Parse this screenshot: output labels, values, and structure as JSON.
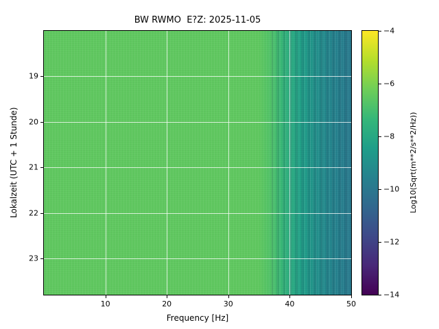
{
  "figure": {
    "title": "BW RWMO  E?Z: 2025-11-05",
    "background": "#ffffff"
  },
  "axes": {
    "x": {
      "label": "Frequency [Hz]",
      "ticks": [
        "10",
        "20",
        "30",
        "40",
        "50"
      ]
    },
    "y": {
      "label": "Lokalzeit (UTC + 1 Stunde)",
      "ticks": [
        "19",
        "20",
        "21",
        "22",
        "23"
      ]
    }
  },
  "colorbar": {
    "label": "Log10(Sqrt(m**2/s**2/Hz))",
    "ticks": [
      "−4",
      "−6",
      "−8",
      "−10",
      "−12",
      "−14"
    ]
  },
  "chart_data": {
    "type": "heatmap",
    "title": "BW RWMO  E?Z: 2025-11-05",
    "xlabel": "Frequency [Hz]",
    "ylabel": "Lokalzeit (UTC + 1 Stunde)",
    "colorbar_label": "Log10(Sqrt(m**2/s**2/Hz))",
    "colormap": "viridis",
    "x_range_hz": [
      0,
      50
    ],
    "x_ticks": [
      10,
      20,
      30,
      40,
      50
    ],
    "y_axis_range_hours": [
      18,
      23.8
    ],
    "y_ticks": [
      19,
      20,
      21,
      22,
      23
    ],
    "colorbar_range": [
      -14,
      -4
    ],
    "colorbar_ticks": [
      -4,
      -6,
      -8,
      -10,
      -12,
      -14
    ],
    "grid": true,
    "time_uniform": true,
    "value_profile_by_frequency": [
      {
        "freq_hz": 0,
        "log10_value": -6.5
      },
      {
        "freq_hz": 10,
        "log10_value": -6.5
      },
      {
        "freq_hz": 20,
        "log10_value": -6.5
      },
      {
        "freq_hz": 30,
        "log10_value": -6.5
      },
      {
        "freq_hz": 35,
        "log10_value": -6.5
      },
      {
        "freq_hz": 37,
        "log10_value": -6.8
      },
      {
        "freq_hz": 39,
        "log10_value": -7.4
      },
      {
        "freq_hz": 40,
        "log10_value": -7.8
      },
      {
        "freq_hz": 42,
        "log10_value": -8.4
      },
      {
        "freq_hz": 44,
        "log10_value": -8.9
      },
      {
        "freq_hz": 46,
        "log10_value": -9.3
      },
      {
        "freq_hz": 48,
        "log10_value": -9.6
      },
      {
        "freq_hz": 50,
        "log10_value": -9.9
      }
    ],
    "viridis_stops": [
      "#440154",
      "#482878",
      "#3e4989",
      "#31688e",
      "#26828e",
      "#1f9e89",
      "#35b779",
      "#6ece58",
      "#b5de2b",
      "#fde725"
    ]
  }
}
